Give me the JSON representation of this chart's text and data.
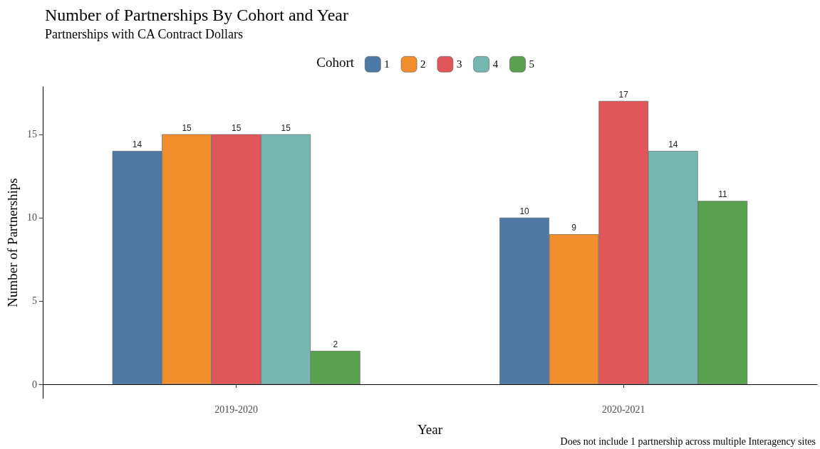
{
  "chart_data": {
    "type": "bar",
    "title": "Number of Partnerships By Cohort and Year",
    "subtitle": "Partnerships with CA Contract Dollars",
    "xlabel": "Year",
    "ylabel": "Number of Partnerships",
    "legend_title": "Cohort",
    "categories": [
      "2019-2020",
      "2020-2021"
    ],
    "series": [
      {
        "name": "1",
        "color": "#4e79a7",
        "values": [
          14,
          10
        ]
      },
      {
        "name": "2",
        "color": "#f28e2b",
        "values": [
          15,
          9
        ]
      },
      {
        "name": "3",
        "color": "#e15759",
        "values": [
          15,
          17
        ]
      },
      {
        "name": "4",
        "color": "#76b7b2",
        "values": [
          15,
          14
        ]
      },
      {
        "name": "5",
        "color": "#59a14f",
        "values": [
          2,
          11
        ]
      }
    ],
    "ylim": [
      -0.85,
      17.85
    ],
    "yticks": [
      0,
      5,
      10,
      15
    ],
    "grid": false,
    "legend": "top",
    "data_labels": true,
    "annotations": [
      "Does not include 1 partnership across multiple Interagency sites"
    ]
  }
}
